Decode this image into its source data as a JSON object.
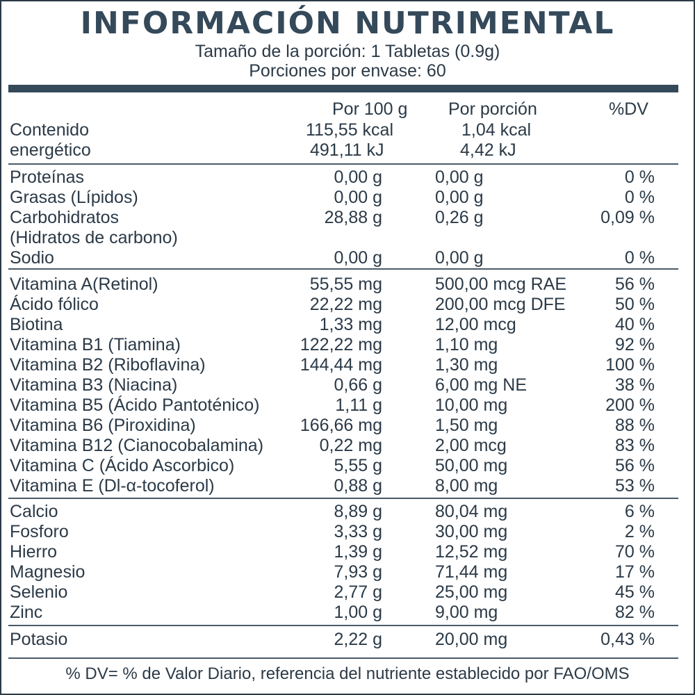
{
  "title": "INFORMACIÓN NUTRIMENTAL",
  "serving_size": "Tamaño de la porción: 1 Tabletas (0.9g)",
  "servings_per_container": "Porciones por envase: 60",
  "headers": {
    "per100": "Por 100 g",
    "perserving": "Por porción",
    "dv": "%DV"
  },
  "energy": {
    "label_line1": "Contenido",
    "label_line2": "energético",
    "kcal_100": "115,55 kcal",
    "kj_100": "491,11 kJ",
    "kcal_por": "1,04 kcal",
    "kj_por": "4,42 kJ"
  },
  "macros": [
    {
      "name": "Proteínas",
      "per100": "0,00 g",
      "perserving": "0,00 g",
      "dv": "0 %"
    },
    {
      "name": "Grasas (Lípidos)",
      "per100": "0,00 g",
      "perserving": "0,00 g",
      "dv": "0 %"
    },
    {
      "name": "Carbohidratos",
      "per100": "28,88 g",
      "perserving": "0,26 g",
      "dv": "0,09 %"
    },
    {
      "name": "(Hidratos de carbono)",
      "per100": "",
      "perserving": "",
      "dv": ""
    },
    {
      "name": "Sodio",
      "per100": "0,00 g",
      "perserving": "0,00 g",
      "dv": "0 %"
    }
  ],
  "vitamins": [
    {
      "name": "Vitamina A(Retinol)",
      "per100": "55,55 mg",
      "perserving": "500,00 mcg RAE",
      "dv": "56 %"
    },
    {
      "name": "Ácido fólico",
      "per100": "22,22 mg",
      "perserving": "200,00 mcg DFE",
      "dv": "50 %"
    },
    {
      "name": "Biotina",
      "per100": "1,33 mg",
      "perserving": "12,00 mcg",
      "dv": "40 %"
    },
    {
      "name": "Vitamina B1 (Tiamina)",
      "per100": "122,22 mg",
      "perserving": "1,10 mg",
      "dv": "92 %"
    },
    {
      "name": "Vitamina B2 (Riboflavina)",
      "per100": "144,44 mg",
      "perserving": "1,30 mg",
      "dv": "100 %"
    },
    {
      "name": "Vitamina B3 (Niacina)",
      "per100": "0,66 g",
      "perserving": "6,00 mg NE",
      "dv": "38 %"
    },
    {
      "name": "Vitamina B5 (Ácido Pantoténico)",
      "per100": "1,11 g",
      "perserving": "10,00 mg",
      "dv": "200 %"
    },
    {
      "name": "Vitamina B6 (Piroxidina)",
      "per100": "166,66 mg",
      "perserving": "1,50 mg",
      "dv": "88 %"
    },
    {
      "name": "Vitamina B12 (Cianocobalamina)",
      "per100": "0,22 mg",
      "perserving": "2,00 mcg",
      "dv": "83 %"
    },
    {
      "name": "Vitamina C (Ácido Ascorbico)",
      "per100": "5,55 g",
      "perserving": "50,00 mg",
      "dv": "56 %"
    },
    {
      "name": "Vitamina E (Dl-α-tocoferol)",
      "per100": "0,88 g",
      "perserving": "8,00 mg",
      "dv": "53 %"
    }
  ],
  "minerals": [
    {
      "name": "Calcio",
      "per100": "8,89 g",
      "perserving": "80,04 mg",
      "dv": "6 %"
    },
    {
      "name": "Fosforo",
      "per100": "3,33 g",
      "perserving": "30,00 mg",
      "dv": "2 %"
    },
    {
      "name": "Hierro",
      "per100": "1,39 g",
      "perserving": "12,52 mg",
      "dv": "70 %"
    },
    {
      "name": "Magnesio",
      "per100": "7,93 g",
      "perserving": "71,44 mg",
      "dv": "17 %"
    },
    {
      "name": "Selenio",
      "per100": "2,77 g",
      "perserving": "25,00 mg",
      "dv": "45 %"
    },
    {
      "name": "Zinc",
      "per100": "1,00 g",
      "perserving": "9,00 mg",
      "dv": "82 %"
    }
  ],
  "potassium": {
    "name": "Potasio",
    "per100": "2,22 g",
    "perserving": "20,00 mg",
    "dv": "0,43 %"
  },
  "footer": "% DV= % de Valor Diario, referencia del nutriente establecido por FAO/OMS"
}
